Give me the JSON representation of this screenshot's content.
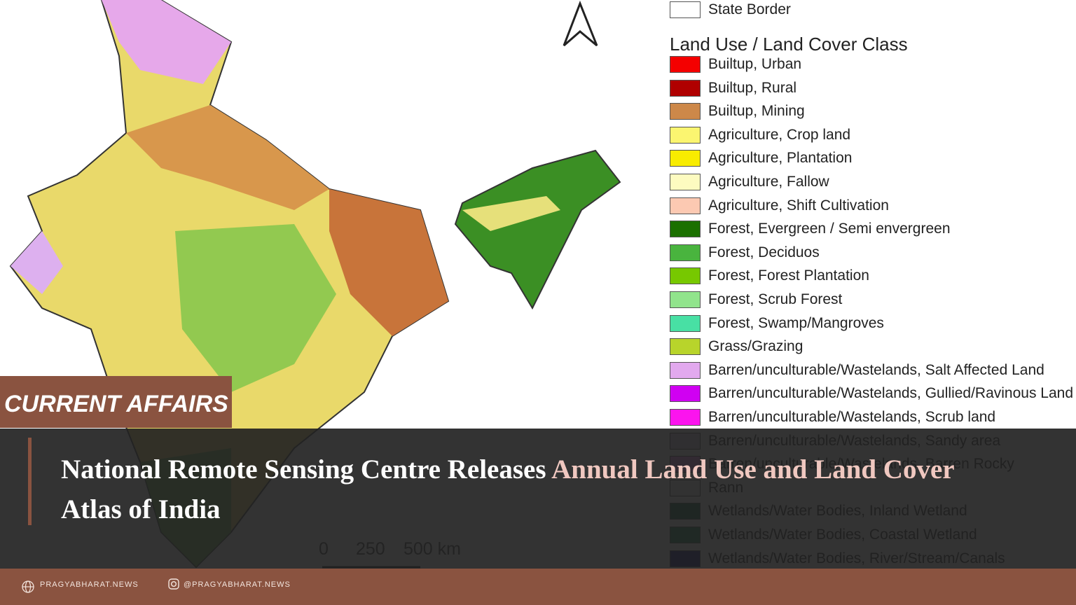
{
  "badge": "CURRENT AFFAIRS",
  "headline": {
    "plain": "National Remote Sensing Centre Releases",
    "highlight": "Annual Land Use and Land Cover",
    "rest": "Atlas of India"
  },
  "footer": {
    "website": "PRAGYABHARAT.NEWS",
    "instagram": "@PRAGYABHARAT.NEWS"
  },
  "map": {
    "scale": [
      "0",
      "250",
      "500 km"
    ],
    "legend": {
      "border_label": "State Border",
      "title": "Land Use / Land Cover Class",
      "items": [
        {
          "label": "Builtup, Urban",
          "color": "#f40000"
        },
        {
          "label": "Builtup, Rural",
          "color": "#b00000"
        },
        {
          "label": "Builtup, Mining",
          "color": "#cd8849"
        },
        {
          "label": "Agriculture, Crop land",
          "color": "#fbf570"
        },
        {
          "label": "Agriculture, Plantation",
          "color": "#f8ec00"
        },
        {
          "label": "Agriculture, Fallow",
          "color": "#fdfbc0"
        },
        {
          "label": "Agriculture, Shift Cultivation",
          "color": "#fcc9b2"
        },
        {
          "label": "Forest, Evergreen / Semi envergreen",
          "color": "#1b7000"
        },
        {
          "label": "Forest, Deciduos",
          "color": "#49b43e"
        },
        {
          "label": "Forest, Forest Plantation",
          "color": "#77c800"
        },
        {
          "label": "Forest, Scrub Forest",
          "color": "#91e48c"
        },
        {
          "label": "Forest, Swamp/Mangroves",
          "color": "#48e0a4"
        },
        {
          "label": "Grass/Grazing",
          "color": "#b8d42b"
        },
        {
          "label": "Barren/unculturable/Wastelands, Salt Affected Land",
          "color": "#e2a9ee"
        },
        {
          "label": "Barren/unculturable/Wastelands, Gullied/Ravinous Land",
          "color": "#d000f2"
        },
        {
          "label": "Barren/unculturable/Wastelands, Scrub land",
          "color": "#fb14ee"
        },
        {
          "label": "Barren/unculturable/Wastelands, Sandy area",
          "color": "#d9cfe7"
        },
        {
          "label": "Barren/unculturable/Wastelands, Barren Rocky",
          "color": "#e98ce8"
        },
        {
          "label": "Rann",
          "color": "#f1f1f1"
        },
        {
          "label": "Wetlands/Water Bodies, Inland Wetland",
          "color": "#0a5a3c"
        },
        {
          "label": "Wetlands/Water Bodies, Coastal Wetland",
          "color": "#14804e"
        },
        {
          "label": "Wetlands/Water Bodies, River/Stream/Canals",
          "color": "#000c6e"
        }
      ]
    }
  }
}
